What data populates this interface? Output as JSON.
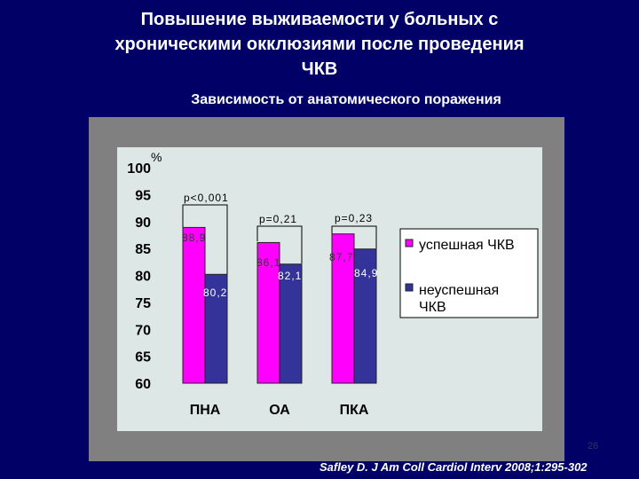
{
  "slide": {
    "title_lines": [
      "Повышение выживаемости у больных с",
      "хроническими окклюзиями после проведения",
      "ЧКВ"
    ],
    "subtitle": "Зависимость от анатомического поражения",
    "citation": "Safley D. J Am Coll Cardiol Interv 2008;1:295-302",
    "slide_number": "26"
  },
  "colors": {
    "background": "#000066",
    "successful": "#ff00ff",
    "unsuccessful": "#333399"
  },
  "chart_data": {
    "type": "bar",
    "categories": [
      "ПНА",
      "ОА",
      "ПКА"
    ],
    "series": [
      {
        "name": "успешная ЧКВ",
        "values": [
          88.9,
          86.1,
          87.7
        ],
        "labels": [
          "88,9",
          "86,1",
          "87,7"
        ]
      },
      {
        "name": "неуспешная ЧКВ",
        "values": [
          80.2,
          82.1,
          84.9
        ],
        "labels": [
          "80,2",
          "82,1",
          "84,9"
        ]
      }
    ],
    "ylabel": "%",
    "ylim": [
      60,
      100
    ],
    "yticks": [
      100,
      95,
      90,
      85,
      80,
      75,
      70,
      65,
      60
    ],
    "p_values": [
      "p<0,001",
      "p=0,21",
      "p=0,23"
    ],
    "legend": [
      "успешная ЧКВ",
      "неуспешная ЧКВ"
    ],
    "legend_position": "right",
    "grid": false
  }
}
